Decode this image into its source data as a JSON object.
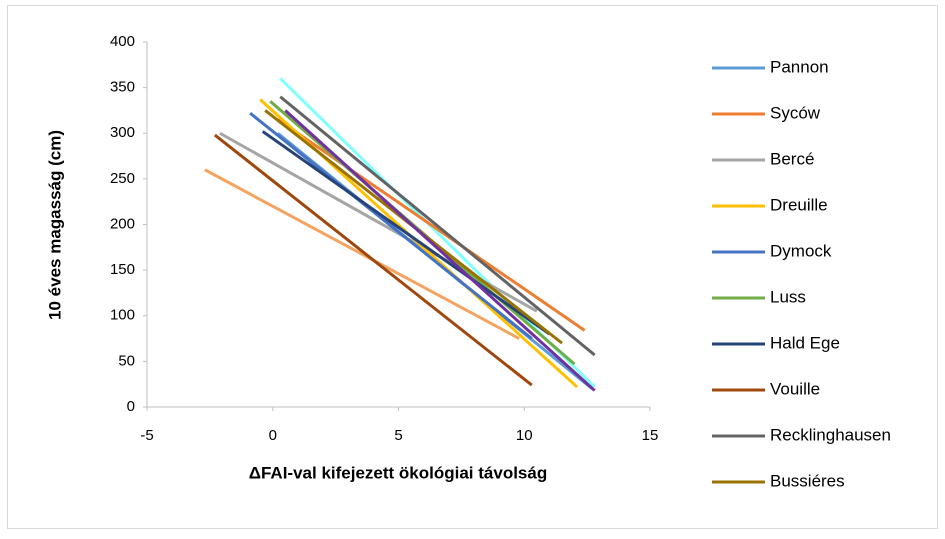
{
  "chart_data": {
    "type": "line",
    "xlabel": "ΔFAI-val kifejezett ökológiai távolság",
    "ylabel": "10 éves magasság (cm)",
    "xlim": [
      -5,
      15
    ],
    "xticks": [
      -5,
      0,
      5,
      10,
      15
    ],
    "ylim": [
      0,
      400
    ],
    "yticks": [
      0,
      50,
      100,
      150,
      200,
      250,
      300,
      350,
      400
    ],
    "legend": "right",
    "series": [
      {
        "color": "#7fffff",
        "x": [
          0.3,
          12.8
        ],
        "values": [
          360,
          22
        ]
      },
      {
        "color": "#f4a460",
        "x": [
          -2.7,
          9.8
        ],
        "values": [
          260,
          75
        ]
      },
      {
        "name": "Pannon",
        "color": "#5b9bd5",
        "x": [
          0.2,
          12.7
        ],
        "values": [
          300,
          20
        ]
      },
      {
        "name": "Syców",
        "color": "#ed7d31",
        "x": [
          0.2,
          12.4
        ],
        "values": [
          315,
          84
        ]
      },
      {
        "name": "Bercé",
        "color": "#a5a5a5",
        "x": [
          -2.1,
          10.5
        ],
        "values": [
          300,
          105
        ]
      },
      {
        "name": "Dreuille",
        "color": "#ffc000",
        "x": [
          -0.5,
          12.1
        ],
        "values": [
          337,
          22
        ]
      },
      {
        "name": "Dymock",
        "color": "#4472c4",
        "x": [
          -0.9,
          10.3
        ],
        "values": [
          322,
          75
        ]
      },
      {
        "name": "Luss",
        "color": "#70ad47",
        "x": [
          -0.1,
          12
        ],
        "values": [
          335,
          47
        ]
      },
      {
        "name": "Hald Ege",
        "color": "#264478",
        "x": [
          -0.4,
          11
        ],
        "values": [
          302,
          80
        ]
      },
      {
        "name": "Vouille",
        "color": "#9e480e",
        "x": [
          -2.3,
          10.3
        ],
        "values": [
          298,
          24
        ]
      },
      {
        "name": "Recklinghausen",
        "color": "#636363",
        "x": [
          0.3,
          12.8
        ],
        "values": [
          340,
          57
        ]
      },
      {
        "name": "Bussiéres",
        "color": "#997300",
        "x": [
          -0.3,
          11.5
        ],
        "values": [
          325,
          70
        ]
      },
      {
        "color": "#7030a0",
        "x": [
          0.5,
          12.8
        ],
        "values": [
          325,
          18
        ]
      }
    ]
  }
}
